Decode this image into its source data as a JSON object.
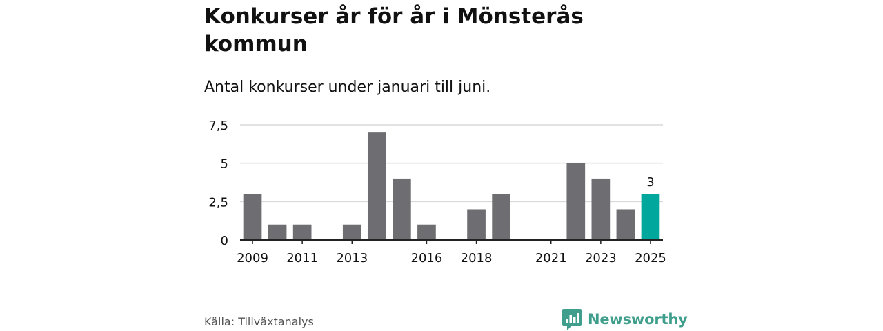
{
  "title": "Konkurser år för år i Mönsterås kommun",
  "subtitle": "Antal konkurser under januari till juni.",
  "source": "Källa: Tillväxtanalys",
  "brand": {
    "name": "Newsworthy",
    "icon": "newsworthy-logo-icon"
  },
  "colors": {
    "bar": "#6e6d72",
    "highlight": "#00a79d",
    "grid": "#d9d9d9",
    "axis": "#222222",
    "text": "#111111",
    "brand": "#3f9f8c"
  },
  "chart_data": {
    "type": "bar",
    "title": "Konkurser år för år i Mönsterås kommun",
    "subtitle": "Antal konkurser under januari till juni.",
    "xlabel": "",
    "ylabel": "",
    "categories": [
      "2009",
      "2010",
      "2011",
      "2012",
      "2013",
      "2014",
      "2015",
      "2016",
      "2017",
      "2018",
      "2019",
      "2020",
      "2021",
      "2022",
      "2023",
      "2024",
      "2025"
    ],
    "values": [
      3,
      1,
      1,
      0,
      1,
      7,
      4,
      1,
      0,
      2,
      3,
      0,
      0,
      5,
      4,
      2,
      3
    ],
    "x_tick_labels": [
      "2009",
      "2011",
      "2013",
      "2016",
      "2018",
      "2021",
      "2023",
      "2025"
    ],
    "y_ticks": [
      0,
      2.5,
      5,
      7.5
    ],
    "y_tick_labels": [
      "0",
      "2,5",
      "5",
      "7,5"
    ],
    "ylim": [
      0,
      7.5
    ],
    "grid": true,
    "highlight": {
      "category": "2025",
      "label": "3"
    }
  }
}
